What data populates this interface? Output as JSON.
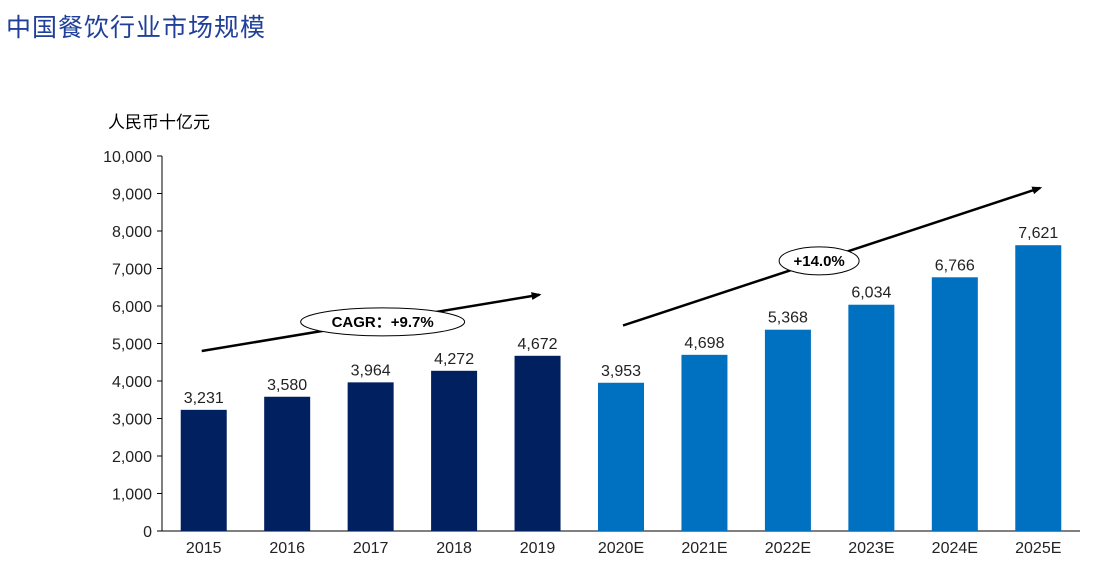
{
  "title": "中国餐饮行业市场规模",
  "unit_label": "人民币十亿元",
  "colors": {
    "actual": "#002060",
    "forecast": "#0070c0",
    "title": "#1f3f99",
    "axis": "#000000"
  },
  "chart_data": {
    "type": "bar",
    "categories": [
      "2015",
      "2016",
      "2017",
      "2018",
      "2019",
      "2020E",
      "2021E",
      "2022E",
      "2023E",
      "2024E",
      "2025E"
    ],
    "values": [
      3231,
      3580,
      3964,
      4272,
      4672,
      3953,
      4698,
      5368,
      6034,
      6766,
      7621
    ],
    "value_labels": [
      "3,231",
      "3,580",
      "3,964",
      "4,272",
      "4,672",
      "3,953",
      "4,698",
      "5,368",
      "6,034",
      "6,766",
      "7,621"
    ],
    "series_color_per_bar": [
      "actual",
      "actual",
      "actual",
      "actual",
      "actual",
      "forecast",
      "forecast",
      "forecast",
      "forecast",
      "forecast",
      "forecast"
    ],
    "ylabel": "人民币十亿元",
    "ylim": [
      0,
      10000
    ],
    "yticks": [
      0,
      1000,
      2000,
      3000,
      4000,
      5000,
      6000,
      7000,
      8000,
      9000,
      10000
    ],
    "ytick_labels": [
      "0",
      "1,000",
      "2,000",
      "3,000",
      "4,000",
      "5,000",
      "6,000",
      "7,000",
      "8,000",
      "9,000",
      "10,000"
    ],
    "grid": false,
    "annotations": [
      {
        "text": "CAGR：+9.7%",
        "from_category": "2015",
        "to_category": "2019"
      },
      {
        "text": "+14.0%",
        "from_category": "2020E",
        "to_category": "2025E"
      }
    ]
  }
}
